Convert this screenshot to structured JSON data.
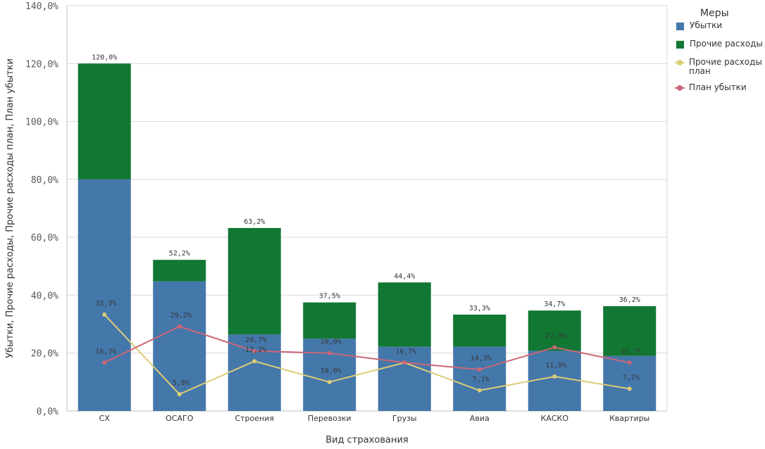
{
  "chart_data": {
    "type": "bar",
    "stacked": true,
    "xlabel": "Вид страхования",
    "ylabel": "Убытки, Прочие расходы, Прочие расходы план, План убытки",
    "ylim": [
      0,
      140
    ],
    "yticks": [
      "0,0%",
      "20,0%",
      "40,0%",
      "60,0%",
      "80,0%",
      "100,0%",
      "120,0%",
      "140,0%"
    ],
    "grid": true,
    "legend_position": "right",
    "categories": [
      "СХ",
      "ОСАГО",
      "Строения",
      "Перевозки",
      "Грузы",
      "Авиа",
      "КАСКО",
      "Квартиры"
    ],
    "totals": [
      "120,0%",
      "52,2%",
      "63,2%",
      "37,5%",
      "44,4%",
      "33,3%",
      "34,7%",
      "36,2%"
    ],
    "series": [
      {
        "name": "Убытки",
        "kind": "bar",
        "color": "#4477aa",
        "values": [
          80.0,
          44.8,
          26.4,
          25.0,
          22.2,
          22.2,
          20.8,
          19.0
        ]
      },
      {
        "name": "Прочие расходы",
        "kind": "bar",
        "color": "#117733",
        "values": [
          40.0,
          7.4,
          36.8,
          12.5,
          22.2,
          11.1,
          13.9,
          17.2
        ]
      },
      {
        "name": "Прочие расходы план",
        "kind": "line",
        "color": "#ddcc77",
        "values": [
          33.3,
          5.8,
          17.2,
          10.0,
          16.7,
          7.1,
          11.9,
          7.7
        ],
        "labels": [
          "33,3%",
          "5,8%",
          "17,2%",
          "10,0%",
          "16,7%",
          "7,1%",
          "11,9%",
          "7,7%"
        ]
      },
      {
        "name": "План убытки",
        "kind": "line",
        "color": "#cc6677",
        "values": [
          16.7,
          29.2,
          20.7,
          20.0,
          16.7,
          14.3,
          22.0,
          16.7
        ],
        "labels": [
          "16,7%",
          "29,2%",
          "20,7%",
          "20,0%",
          "",
          "14,3%",
          "22,0%",
          "16,7%"
        ]
      }
    ],
    "legend_title": "Меры"
  }
}
